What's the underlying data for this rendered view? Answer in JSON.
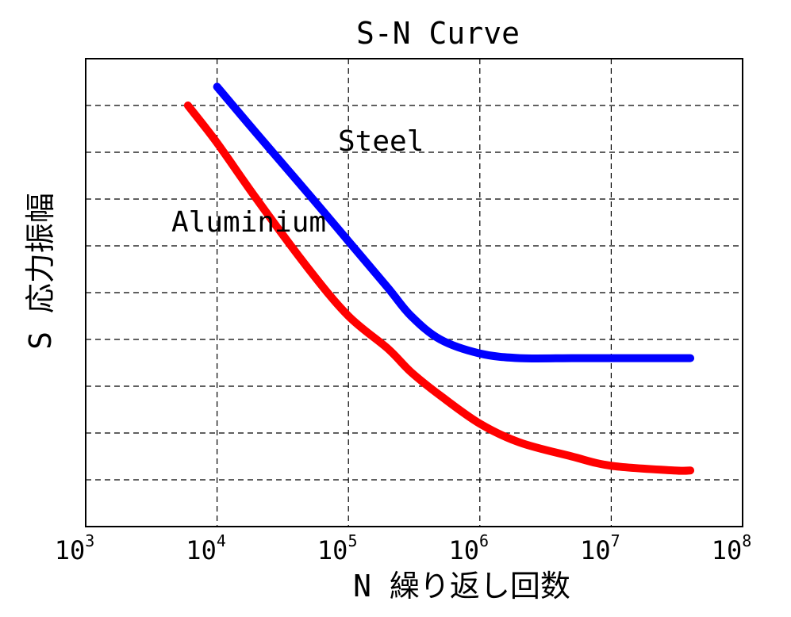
{
  "chart_data": {
    "type": "line",
    "title": "S-N Curve",
    "xlabel": "N 繰り返し回数",
    "ylabel": "S 応力振幅",
    "xscale": "log",
    "xlim": [
      1000,
      100000000
    ],
    "ylim": [
      0,
      10
    ],
    "grid": true,
    "y_tick_labels_shown": false,
    "x_ticks": [
      {
        "base": "10",
        "exp": "3"
      },
      {
        "base": "10",
        "exp": "4"
      },
      {
        "base": "10",
        "exp": "5"
      },
      {
        "base": "10",
        "exp": "6"
      },
      {
        "base": "10",
        "exp": "7"
      },
      {
        "base": "10",
        "exp": "8"
      }
    ],
    "series": [
      {
        "name": "Steel",
        "color": "#0000ff",
        "points": [
          [
            10000,
            9.4
          ],
          [
            20000,
            8.4
          ],
          [
            50000,
            7.1
          ],
          [
            100000,
            6.1
          ],
          [
            200000,
            5.1
          ],
          [
            300000,
            4.5
          ],
          [
            500000,
            4.0
          ],
          [
            1000000,
            3.7
          ],
          [
            2000000,
            3.6
          ],
          [
            5000000,
            3.6
          ],
          [
            10000000,
            3.6
          ],
          [
            40000000,
            3.6
          ]
        ]
      },
      {
        "name": "Aluminium",
        "color": "#ff0000",
        "points": [
          [
            6000,
            9.0
          ],
          [
            10000,
            8.2
          ],
          [
            20000,
            7.0
          ],
          [
            50000,
            5.5
          ],
          [
            100000,
            4.5
          ],
          [
            200000,
            3.8
          ],
          [
            300000,
            3.3
          ],
          [
            500000,
            2.8
          ],
          [
            1000000,
            2.2
          ],
          [
            2000000,
            1.8
          ],
          [
            5000000,
            1.5
          ],
          [
            10000000,
            1.3
          ],
          [
            30000000,
            1.2
          ],
          [
            40000000,
            1.2
          ]
        ]
      }
    ]
  }
}
